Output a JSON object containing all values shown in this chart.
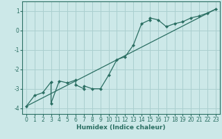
{
  "title": "",
  "xlabel": "Humidex (Indice chaleur)",
  "ylabel": "",
  "bg_color": "#cce8e8",
  "grid_color": "#aacfcf",
  "line_color": "#2a6e62",
  "xlim": [
    -0.5,
    23.5
  ],
  "ylim": [
    -4.3,
    1.5
  ],
  "yticks": [
    -4,
    -3,
    -2,
    -1,
    0,
    1
  ],
  "xticks": [
    0,
    1,
    2,
    3,
    4,
    5,
    6,
    7,
    8,
    9,
    10,
    11,
    12,
    13,
    14,
    15,
    16,
    17,
    18,
    19,
    20,
    21,
    22,
    23
  ],
  "curve1_x": [
    0,
    1,
    2,
    3,
    3,
    4,
    5,
    6,
    6,
    7,
    7,
    8,
    9,
    10,
    11,
    12,
    13,
    14,
    15,
    15,
    16,
    17,
    18,
    19,
    20,
    21,
    22,
    23
  ],
  "curve1_y": [
    -3.9,
    -3.35,
    -3.2,
    -2.65,
    -3.75,
    -2.6,
    -2.7,
    -2.55,
    -2.8,
    -3.0,
    -2.85,
    -3.0,
    -3.0,
    -2.3,
    -1.5,
    -1.35,
    -0.75,
    0.35,
    0.55,
    0.65,
    0.55,
    0.2,
    0.35,
    0.45,
    0.65,
    0.75,
    0.9,
    1.1
  ],
  "line2_x": [
    0,
    23
  ],
  "line2_y": [
    -3.9,
    1.1
  ],
  "xlabel_fontsize": 6.5,
  "tick_fontsize": 5.5
}
